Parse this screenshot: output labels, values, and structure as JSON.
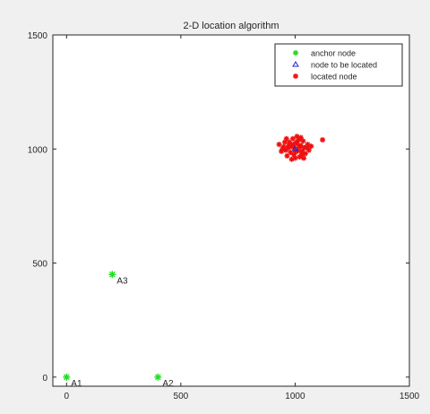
{
  "chart_data": {
    "type": "scatter",
    "title": "2-D location algorithm",
    "xlabel": "",
    "ylabel": "",
    "xlim": [
      -60,
      1500
    ],
    "ylim": [
      -40,
      1500
    ],
    "xticks": [
      0,
      500,
      1000,
      1500
    ],
    "yticks": [
      0,
      500,
      1000,
      1500
    ],
    "grid": false,
    "legend_position": "top-right",
    "series": [
      {
        "name": "anchor node",
        "marker": "asterisk",
        "color": "#22dd22",
        "points": [
          {
            "x": 0,
            "y": 0,
            "label": "A1"
          },
          {
            "x": 400,
            "y": 0,
            "label": "A2"
          },
          {
            "x": 200,
            "y": 450,
            "label": "A3"
          }
        ]
      },
      {
        "name": "node to be located",
        "marker": "triangle",
        "color": "#2222cc",
        "points": [
          {
            "x": 1000,
            "y": 1000
          }
        ]
      },
      {
        "name": "located node",
        "marker": "asterisk",
        "color": "#ee1111",
        "points": [
          {
            "x": 1000,
            "y": 1000
          },
          {
            "x": 985,
            "y": 1010
          },
          {
            "x": 1012,
            "y": 992
          },
          {
            "x": 970,
            "y": 1005
          },
          {
            "x": 1025,
            "y": 1015
          },
          {
            "x": 995,
            "y": 975
          },
          {
            "x": 1030,
            "y": 990
          },
          {
            "x": 960,
            "y": 995
          },
          {
            "x": 1005,
            "y": 1030
          },
          {
            "x": 1040,
            "y": 1005
          },
          {
            "x": 980,
            "y": 985
          },
          {
            "x": 1015,
            "y": 1040
          },
          {
            "x": 950,
            "y": 1010
          },
          {
            "x": 1045,
            "y": 980
          },
          {
            "x": 990,
            "y": 1045
          },
          {
            "x": 1020,
            "y": 965
          },
          {
            "x": 965,
            "y": 970
          },
          {
            "x": 1055,
            "y": 1020
          },
          {
            "x": 940,
            "y": 990
          },
          {
            "x": 1008,
            "y": 1055
          },
          {
            "x": 975,
            "y": 1030
          },
          {
            "x": 1035,
            "y": 1035
          },
          {
            "x": 955,
            "y": 1030
          },
          {
            "x": 1060,
            "y": 995
          },
          {
            "x": 1000,
            "y": 960
          },
          {
            "x": 945,
            "y": 1000
          },
          {
            "x": 1028,
            "y": 975
          },
          {
            "x": 992,
            "y": 1020
          },
          {
            "x": 1018,
            "y": 1008
          },
          {
            "x": 972,
            "y": 1015
          },
          {
            "x": 1050,
            "y": 1008
          },
          {
            "x": 985,
            "y": 955
          },
          {
            "x": 1010,
            "y": 1022
          },
          {
            "x": 962,
            "y": 1045
          },
          {
            "x": 1038,
            "y": 960
          },
          {
            "x": 1003,
            "y": 988
          },
          {
            "x": 1120,
            "y": 1040
          },
          {
            "x": 1070,
            "y": 1012
          },
          {
            "x": 930,
            "y": 1020
          },
          {
            "x": 1025,
            "y": 1050
          }
        ]
      }
    ]
  }
}
